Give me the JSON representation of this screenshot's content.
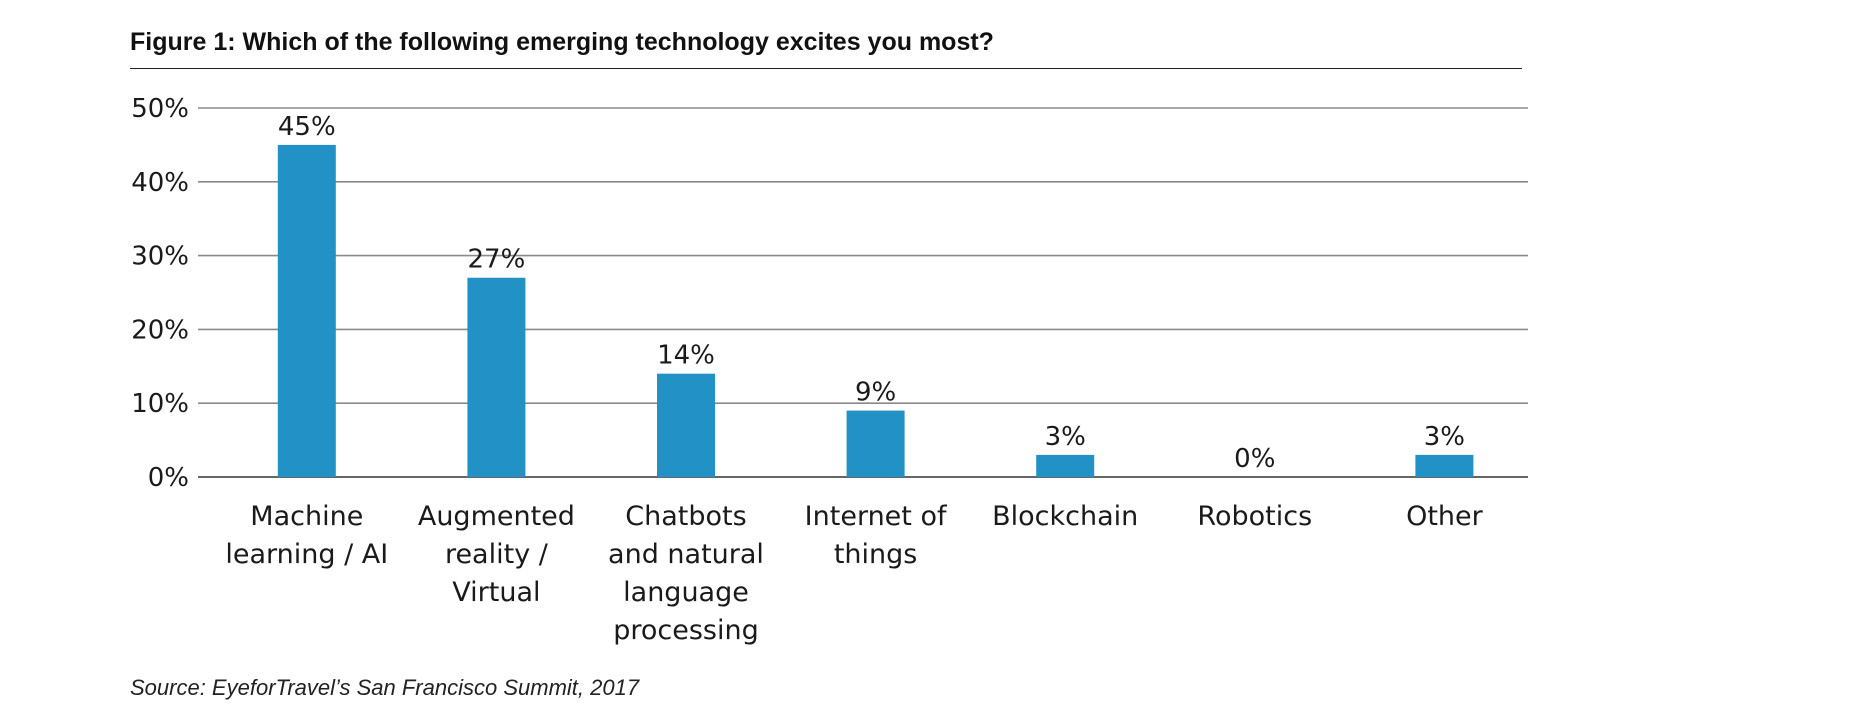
{
  "figure": {
    "title": "Figure 1: Which of the following emerging technology excites you most?",
    "source": "Source: EyeforTravel’s San Francisco Summit, 2017"
  },
  "colors": {
    "bar": "#2291c6",
    "gridline": "#8a8a8a",
    "axis": "#666666",
    "text": "#1a1a1a"
  },
  "chart_data": {
    "type": "bar",
    "title": "Figure 1: Which of the following emerging technology excites you most?",
    "categories": [
      [
        "Machine",
        "learning / AI"
      ],
      [
        "Augmented",
        "reality /",
        "Virtual"
      ],
      [
        "Chatbots",
        "and natural",
        "language",
        "processing"
      ],
      [
        "Internet of",
        "things"
      ],
      [
        "Blockchain"
      ],
      [
        "Robotics"
      ],
      [
        "Other"
      ]
    ],
    "values": [
      45,
      27,
      14,
      9,
      3,
      0,
      3
    ],
    "data_labels": [
      "45%",
      "27%",
      "14%",
      "9%",
      "3%",
      "0%",
      "3%"
    ],
    "yticks": [
      0,
      10,
      20,
      30,
      40,
      50
    ],
    "ytick_labels": [
      "0%",
      "10%",
      "20%",
      "30%",
      "40%",
      "50%"
    ],
    "ylim": [
      0,
      50
    ],
    "grid": true,
    "legend": "none",
    "xlabel": "",
    "ylabel": ""
  }
}
